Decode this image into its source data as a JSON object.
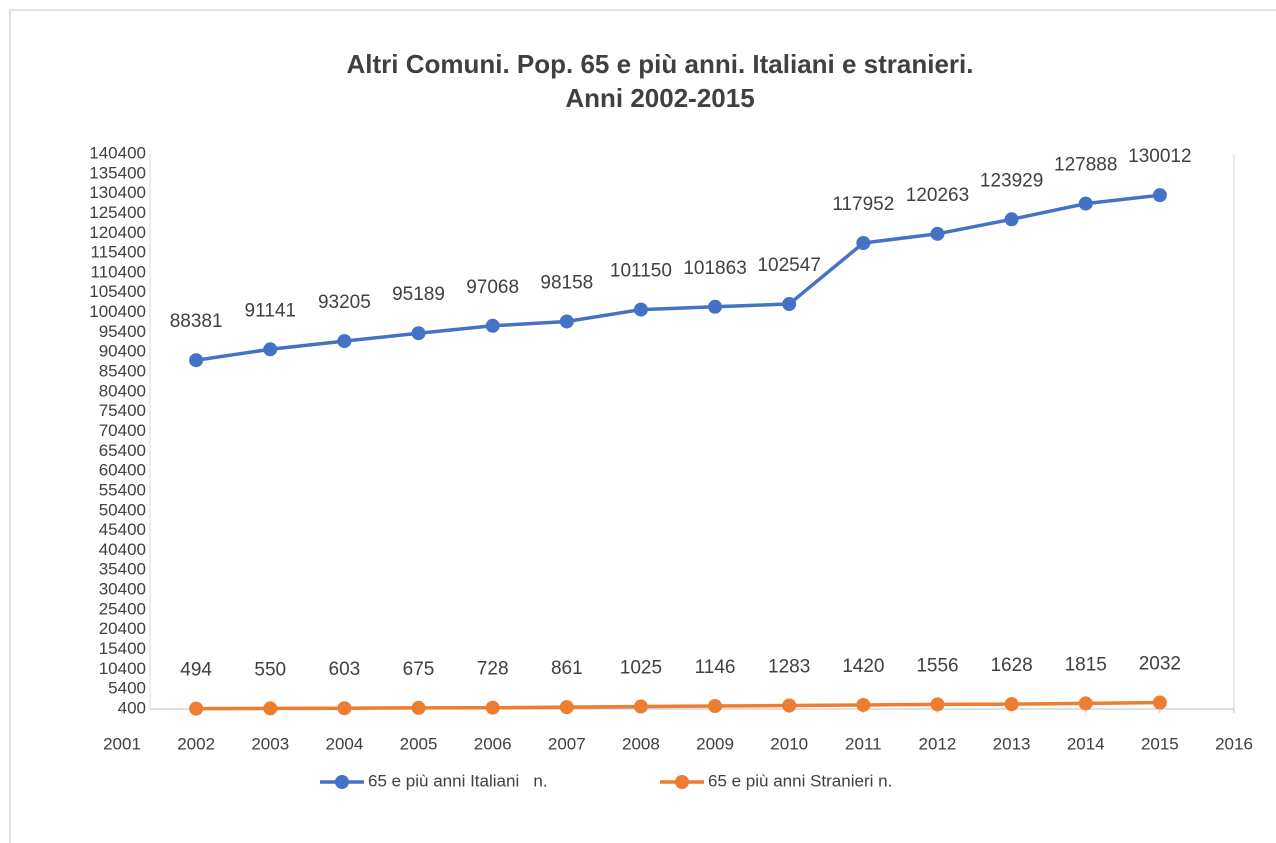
{
  "chart_data": {
    "type": "line",
    "title": [
      "Altri Comuni. Pop. 65 e più anni. Italiani e stranieri.",
      "Anni 2002-2015"
    ],
    "x": [
      2002,
      2003,
      2004,
      2005,
      2006,
      2007,
      2008,
      2009,
      2010,
      2011,
      2012,
      2013,
      2014,
      2015
    ],
    "series": [
      {
        "name": "65 e più anni Italiani   n.",
        "color": "#4472c4",
        "values": [
          88381,
          91141,
          93205,
          95189,
          97068,
          98158,
          101150,
          101863,
          102547,
          117952,
          120263,
          123929,
          127888,
          130012
        ]
      },
      {
        "name": "65 e più anni Stranieri n.",
        "color": "#ed7d31",
        "values": [
          494,
          550,
          603,
          675,
          728,
          861,
          1025,
          1146,
          1283,
          1420,
          1556,
          1628,
          1815,
          2032
        ]
      }
    ],
    "xlim": [
      2001,
      2016
    ],
    "xticks": [
      2001,
      2002,
      2003,
      2004,
      2005,
      2006,
      2007,
      2008,
      2009,
      2010,
      2011,
      2012,
      2013,
      2014,
      2015,
      2016
    ],
    "ylim": [
      400,
      140400
    ],
    "yticks": [
      400,
      5400,
      10400,
      15400,
      20400,
      25400,
      30400,
      35400,
      40400,
      45400,
      50400,
      55400,
      60400,
      65400,
      70400,
      75400,
      80400,
      85400,
      90400,
      95400,
      100400,
      105400,
      110400,
      115400,
      120400,
      125400,
      130400,
      135400,
      140400
    ],
    "grid": false,
    "legend": "bottom"
  }
}
